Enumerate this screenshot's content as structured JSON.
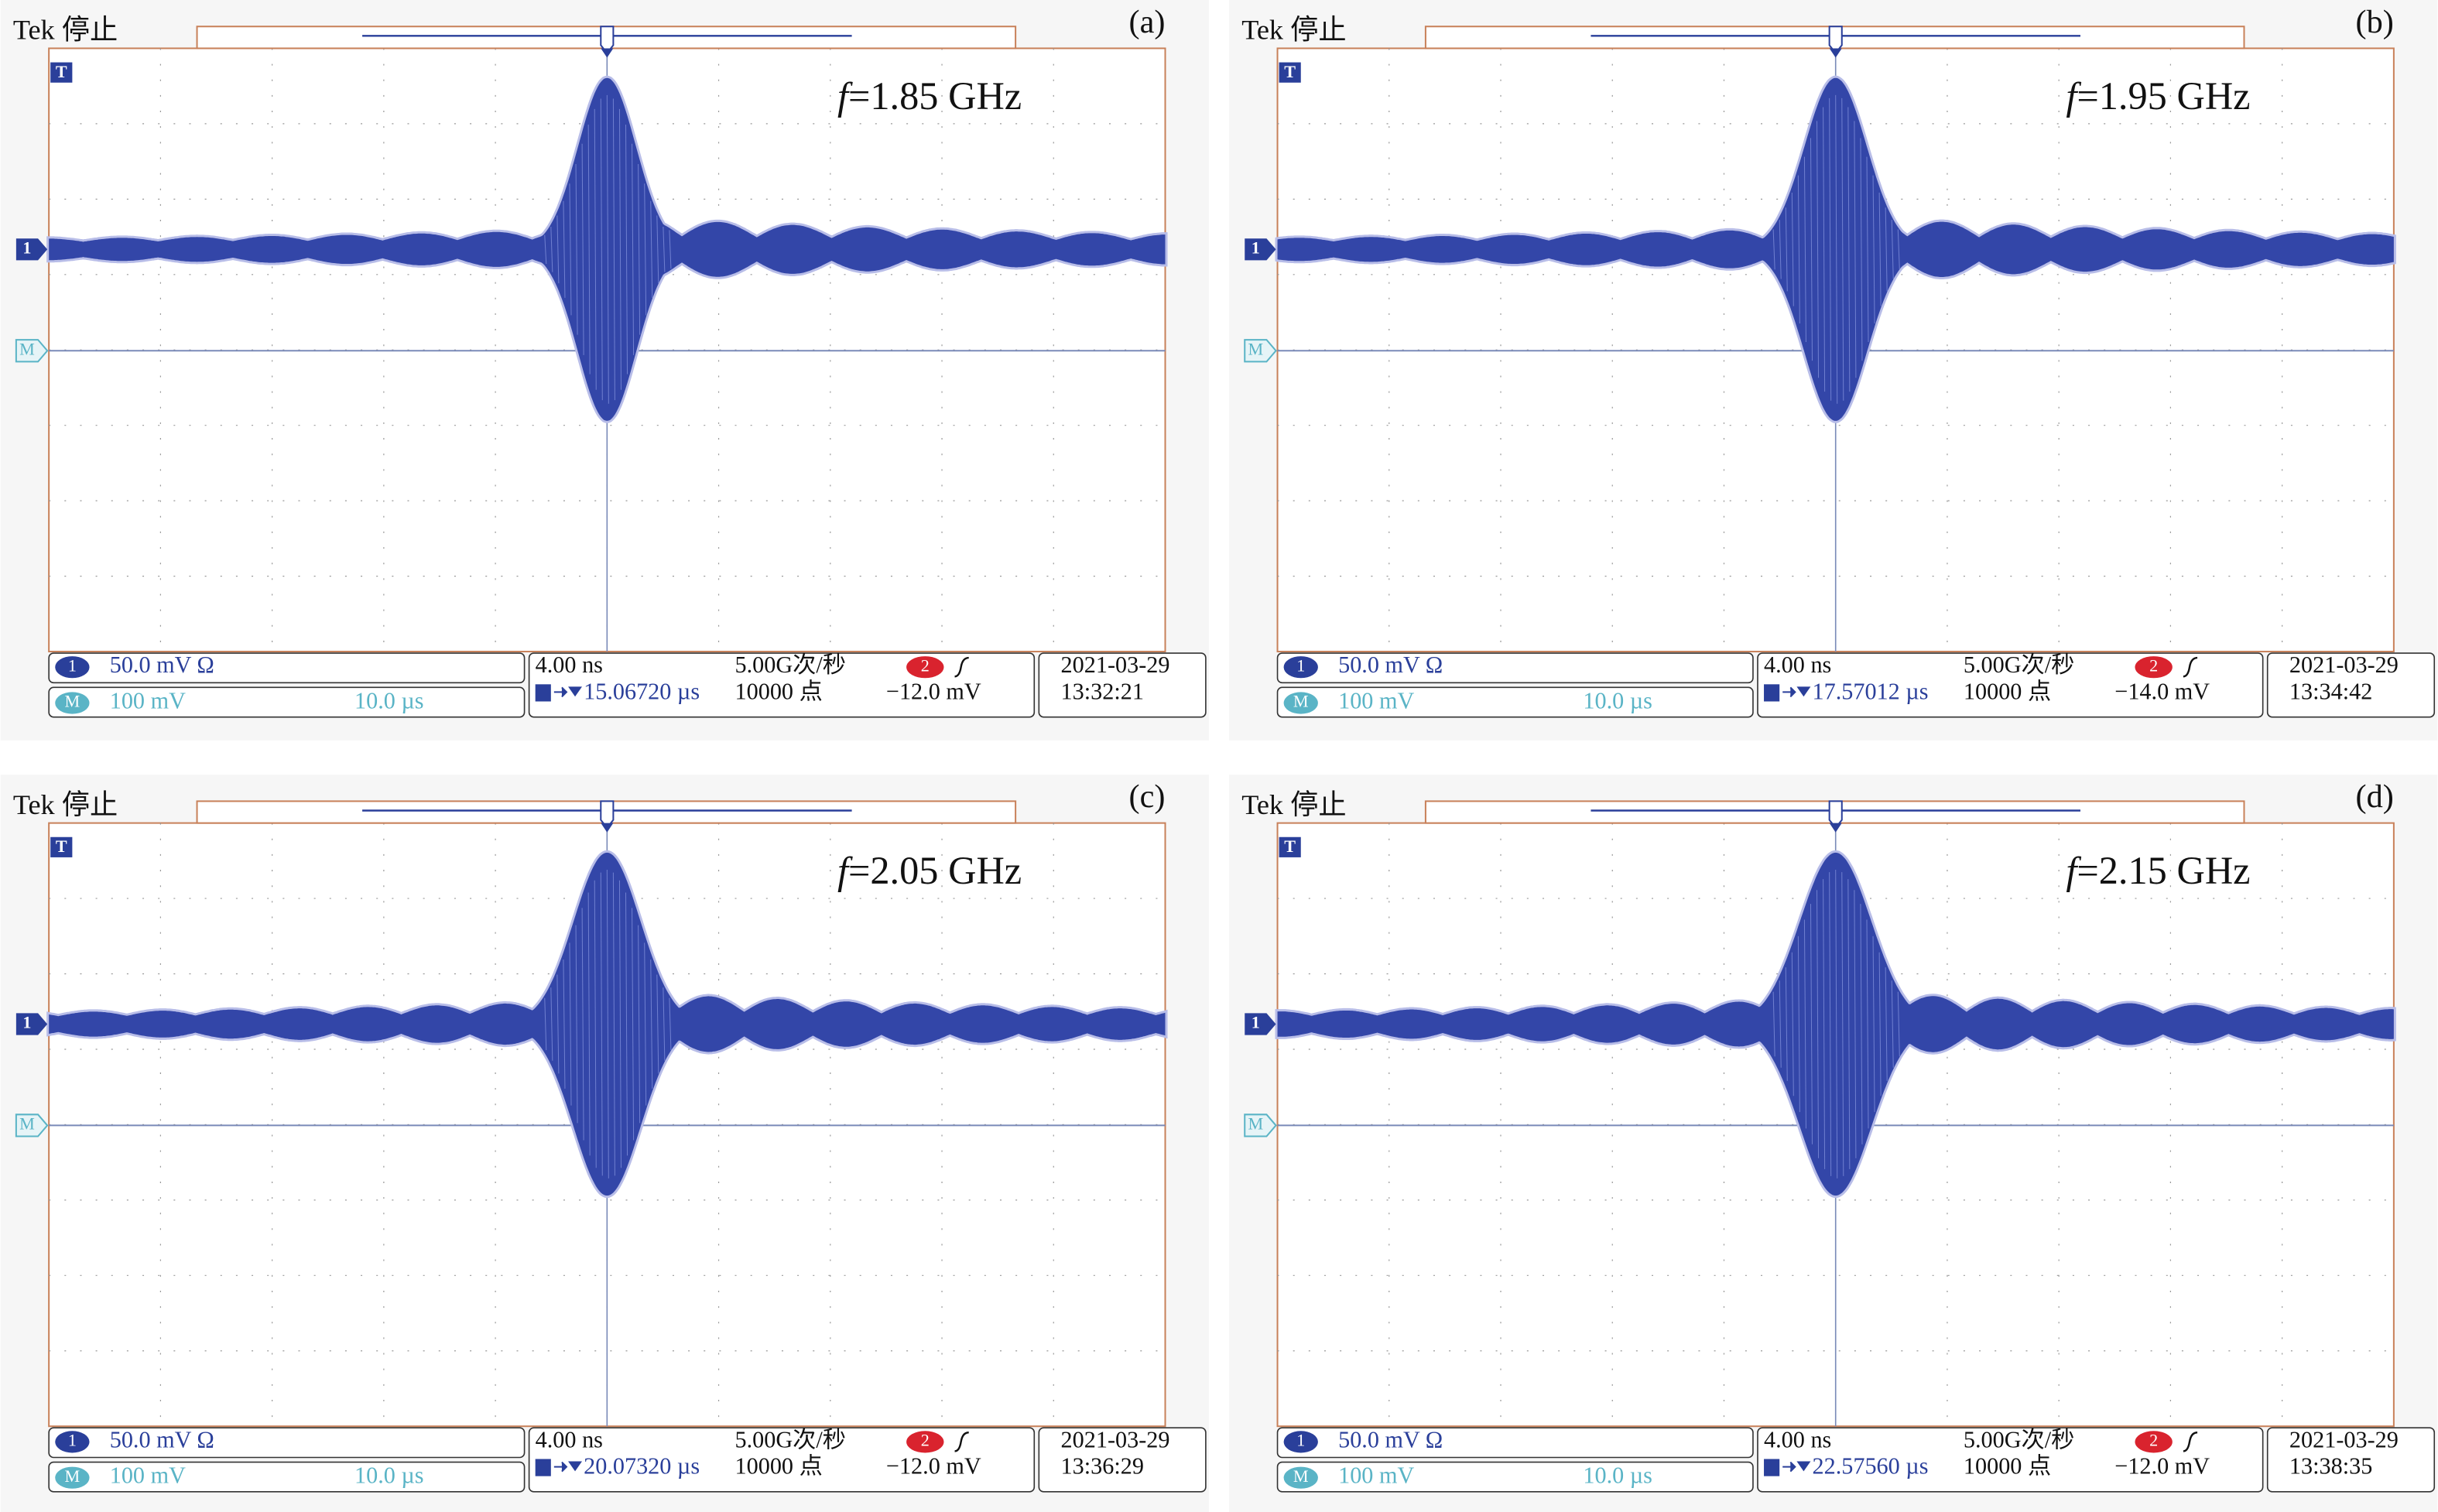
{
  "panels": [
    {
      "label": "(a)",
      "brand": "Tek 停止",
      "trigger_marker": "T",
      "ch1_marker": "1",
      "math_marker": "M",
      "frequency": {
        "symbol": "f",
        "text": "=1.85 GHz"
      },
      "ch1": {
        "badge": "1",
        "scale": "50.0 mV Ω"
      },
      "math": {
        "badge": "M",
        "scale": "100 mV",
        "time": "10.0 µs"
      },
      "timebase": "4.00 ns",
      "sample_rate": "5.00G次/秒",
      "trigger_position": "15.06720 µs",
      "record_length": "10000 点",
      "trigger_badge": "2",
      "trigger_level": "−12.0 mV",
      "date": "2021-03-29",
      "time": "13:32:21"
    },
    {
      "label": "(b)",
      "brand": "Tek 停止",
      "trigger_marker": "T",
      "ch1_marker": "1",
      "math_marker": "M",
      "frequency": {
        "symbol": "f",
        "text": "=1.95 GHz"
      },
      "ch1": {
        "badge": "1",
        "scale": "50.0 mV Ω"
      },
      "math": {
        "badge": "M",
        "scale": "100 mV",
        "time": "10.0 µs"
      },
      "timebase": "4.00 ns",
      "sample_rate": "5.00G次/秒",
      "trigger_position": "17.57012 µs",
      "record_length": "10000 点",
      "trigger_badge": "2",
      "trigger_level": "−14.0 mV",
      "date": "2021-03-29",
      "time": "13:34:42"
    },
    {
      "label": "(c)",
      "brand": "Tek 停止",
      "trigger_marker": "T",
      "ch1_marker": "1",
      "math_marker": "M",
      "frequency": {
        "symbol": "f",
        "text": "=2.05 GHz"
      },
      "ch1": {
        "badge": "1",
        "scale": "50.0 mV Ω"
      },
      "math": {
        "badge": "M",
        "scale": "100 mV",
        "time": "10.0 µs"
      },
      "timebase": "4.00 ns",
      "sample_rate": "5.00G次/秒",
      "trigger_position": "20.07320 µs",
      "record_length": "10000 点",
      "trigger_badge": "2",
      "trigger_level": "−12.0 mV",
      "date": "2021-03-29",
      "time": "13:36:29"
    },
    {
      "label": "(d)",
      "brand": "Tek 停止",
      "trigger_marker": "T",
      "ch1_marker": "1",
      "math_marker": "M",
      "frequency": {
        "symbol": "f",
        "text": "=2.15 GHz"
      },
      "ch1": {
        "badge": "1",
        "scale": "50.0 mV Ω"
      },
      "math": {
        "badge": "M",
        "scale": "100 mV",
        "time": "10.0 µs"
      },
      "timebase": "4.00 ns",
      "sample_rate": "5.00G次/秒",
      "trigger_position": "22.57560 µs",
      "record_length": "10000 点",
      "trigger_badge": "2",
      "trigger_level": "−12.0 mV",
      "date": "2021-03-29",
      "time": "13:38:35"
    }
  ]
}
